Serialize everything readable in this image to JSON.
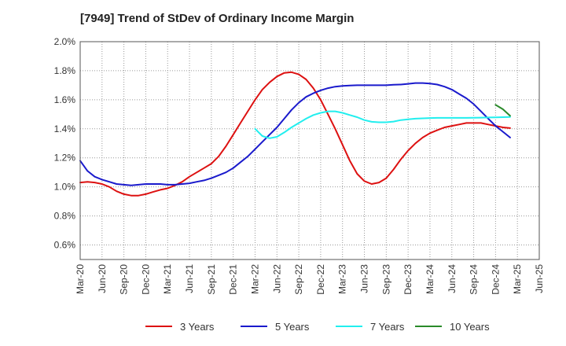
{
  "chart_data": {
    "type": "line",
    "title": "[7949]  Trend of StDev of Ordinary Income Margin",
    "xlabel": "",
    "ylabel": "",
    "x_ticks": [
      "Mar-20",
      "Jun-20",
      "Sep-20",
      "Dec-20",
      "Mar-21",
      "Jun-21",
      "Sep-21",
      "Dec-21",
      "Mar-22",
      "Jun-22",
      "Sep-22",
      "Dec-22",
      "Mar-23",
      "Jun-23",
      "Sep-23",
      "Dec-23",
      "Mar-24",
      "Jun-24",
      "Sep-24",
      "Dec-24",
      "Mar-25",
      "Jun-25"
    ],
    "y_ticks": [
      "0.6%",
      "0.8%",
      "1.0%",
      "1.2%",
      "1.4%",
      "1.6%",
      "1.8%",
      "2.0%"
    ],
    "ylim": [
      0.5,
      2.0
    ],
    "grid": true,
    "legend_position": "bottom",
    "series": [
      {
        "name": "3 Years",
        "color": "#dd1111",
        "points": [
          [
            "Mar-20",
            1.03
          ],
          [
            "Apr-20",
            1.035
          ],
          [
            "May-20",
            1.03
          ],
          [
            "Jun-20",
            1.02
          ],
          [
            "Jul-20",
            1.0
          ],
          [
            "Aug-20",
            0.97
          ],
          [
            "Sep-20",
            0.95
          ],
          [
            "Oct-20",
            0.94
          ],
          [
            "Nov-20",
            0.94
          ],
          [
            "Dec-20",
            0.95
          ],
          [
            "Jan-21",
            0.965
          ],
          [
            "Feb-21",
            0.98
          ],
          [
            "Mar-21",
            0.99
          ],
          [
            "Apr-21",
            1.01
          ],
          [
            "May-21",
            1.035
          ],
          [
            "Jun-21",
            1.07
          ],
          [
            "Jul-21",
            1.1
          ],
          [
            "Aug-21",
            1.13
          ],
          [
            "Sep-21",
            1.16
          ],
          [
            "Oct-21",
            1.21
          ],
          [
            "Nov-21",
            1.28
          ],
          [
            "Dec-21",
            1.36
          ],
          [
            "Jan-22",
            1.44
          ],
          [
            "Feb-22",
            1.52
          ],
          [
            "Mar-22",
            1.6
          ],
          [
            "Apr-22",
            1.67
          ],
          [
            "May-22",
            1.72
          ],
          [
            "Jun-22",
            1.76
          ],
          [
            "Jul-22",
            1.785
          ],
          [
            "Aug-22",
            1.79
          ],
          [
            "Sep-22",
            1.775
          ],
          [
            "Oct-22",
            1.74
          ],
          [
            "Nov-22",
            1.68
          ],
          [
            "Dec-22",
            1.6
          ],
          [
            "Jan-23",
            1.5
          ],
          [
            "Feb-23",
            1.4
          ],
          [
            "Mar-23",
            1.29
          ],
          [
            "Apr-23",
            1.18
          ],
          [
            "May-23",
            1.09
          ],
          [
            "Jun-23",
            1.04
          ],
          [
            "Jul-23",
            1.02
          ],
          [
            "Aug-23",
            1.03
          ],
          [
            "Sep-23",
            1.06
          ],
          [
            "Oct-23",
            1.12
          ],
          [
            "Nov-23",
            1.19
          ],
          [
            "Dec-23",
            1.25
          ],
          [
            "Jan-24",
            1.3
          ],
          [
            "Feb-24",
            1.34
          ],
          [
            "Mar-24",
            1.37
          ],
          [
            "Apr-24",
            1.39
          ],
          [
            "May-24",
            1.41
          ],
          [
            "Jun-24",
            1.42
          ],
          [
            "Jul-24",
            1.43
          ],
          [
            "Aug-24",
            1.44
          ],
          [
            "Sep-24",
            1.44
          ],
          [
            "Oct-24",
            1.44
          ],
          [
            "Nov-24",
            1.43
          ],
          [
            "Dec-24",
            1.42
          ],
          [
            "Jan-25",
            1.41
          ],
          [
            "Feb-25",
            1.405
          ]
        ]
      },
      {
        "name": "5 Years",
        "color": "#1a1acc",
        "points": [
          [
            "Mar-20",
            1.18
          ],
          [
            "Apr-20",
            1.11
          ],
          [
            "May-20",
            1.07
          ],
          [
            "Jun-20",
            1.05
          ],
          [
            "Jul-20",
            1.035
          ],
          [
            "Aug-20",
            1.02
          ],
          [
            "Sep-20",
            1.015
          ],
          [
            "Oct-20",
            1.01
          ],
          [
            "Nov-20",
            1.015
          ],
          [
            "Dec-20",
            1.02
          ],
          [
            "Jan-21",
            1.02
          ],
          [
            "Feb-21",
            1.02
          ],
          [
            "Mar-21",
            1.015
          ],
          [
            "Apr-21",
            1.015
          ],
          [
            "May-21",
            1.02
          ],
          [
            "Jun-21",
            1.025
          ],
          [
            "Jul-21",
            1.035
          ],
          [
            "Aug-21",
            1.045
          ],
          [
            "Sep-21",
            1.06
          ],
          [
            "Oct-21",
            1.08
          ],
          [
            "Nov-21",
            1.1
          ],
          [
            "Dec-21",
            1.13
          ],
          [
            "Jan-22",
            1.17
          ],
          [
            "Feb-22",
            1.21
          ],
          [
            "Mar-22",
            1.26
          ],
          [
            "Apr-22",
            1.31
          ],
          [
            "May-22",
            1.36
          ],
          [
            "Jun-22",
            1.41
          ],
          [
            "Jul-22",
            1.47
          ],
          [
            "Aug-22",
            1.53
          ],
          [
            "Sep-22",
            1.58
          ],
          [
            "Oct-22",
            1.62
          ],
          [
            "Nov-22",
            1.645
          ],
          [
            "Dec-22",
            1.665
          ],
          [
            "Jan-23",
            1.68
          ],
          [
            "Feb-23",
            1.69
          ],
          [
            "Mar-23",
            1.695
          ],
          [
            "Apr-23",
            1.698
          ],
          [
            "May-23",
            1.7
          ],
          [
            "Jun-23",
            1.7
          ],
          [
            "Jul-23",
            1.7
          ],
          [
            "Aug-23",
            1.7
          ],
          [
            "Sep-23",
            1.7
          ],
          [
            "Oct-23",
            1.703
          ],
          [
            "Nov-23",
            1.705
          ],
          [
            "Dec-23",
            1.71
          ],
          [
            "Jan-24",
            1.715
          ],
          [
            "Feb-24",
            1.715
          ],
          [
            "Mar-24",
            1.712
          ],
          [
            "Apr-24",
            1.705
          ],
          [
            "May-24",
            1.69
          ],
          [
            "Jun-24",
            1.67
          ],
          [
            "Jul-24",
            1.64
          ],
          [
            "Aug-24",
            1.61
          ],
          [
            "Sep-24",
            1.57
          ],
          [
            "Oct-24",
            1.52
          ],
          [
            "Nov-24",
            1.47
          ],
          [
            "Dec-24",
            1.42
          ],
          [
            "Jan-25",
            1.38
          ],
          [
            "Feb-25",
            1.34
          ]
        ]
      },
      {
        "name": "7 Years",
        "color": "#22eeee",
        "points": [
          [
            "Mar-22",
            1.4
          ],
          [
            "Apr-22",
            1.35
          ],
          [
            "May-22",
            1.335
          ],
          [
            "Jun-22",
            1.345
          ],
          [
            "Jul-22",
            1.375
          ],
          [
            "Aug-22",
            1.41
          ],
          [
            "Sep-22",
            1.44
          ],
          [
            "Oct-22",
            1.47
          ],
          [
            "Nov-22",
            1.495
          ],
          [
            "Dec-22",
            1.51
          ],
          [
            "Jan-23",
            1.52
          ],
          [
            "Feb-23",
            1.52
          ],
          [
            "Mar-23",
            1.51
          ],
          [
            "Apr-23",
            1.495
          ],
          [
            "May-23",
            1.48
          ],
          [
            "Jun-23",
            1.46
          ],
          [
            "Jul-23",
            1.448
          ],
          [
            "Aug-23",
            1.445
          ],
          [
            "Sep-23",
            1.445
          ],
          [
            "Oct-23",
            1.45
          ],
          [
            "Nov-23",
            1.46
          ],
          [
            "Dec-23",
            1.465
          ],
          [
            "Jan-24",
            1.47
          ],
          [
            "Feb-24",
            1.472
          ],
          [
            "Mar-24",
            1.474
          ],
          [
            "Apr-24",
            1.475
          ],
          [
            "May-24",
            1.475
          ],
          [
            "Jun-24",
            1.475
          ],
          [
            "Jul-24",
            1.475
          ],
          [
            "Aug-24",
            1.475
          ],
          [
            "Sep-24",
            1.476
          ],
          [
            "Oct-24",
            1.477
          ],
          [
            "Nov-24",
            1.478
          ],
          [
            "Dec-24",
            1.479
          ],
          [
            "Jan-25",
            1.48
          ],
          [
            "Feb-25",
            1.482
          ]
        ]
      },
      {
        "name": "10 Years",
        "color": "#2a8a2a",
        "points": [
          [
            "Dec-24",
            1.565
          ],
          [
            "Jan-25",
            1.535
          ],
          [
            "Feb-25",
            1.49
          ]
        ]
      }
    ]
  }
}
